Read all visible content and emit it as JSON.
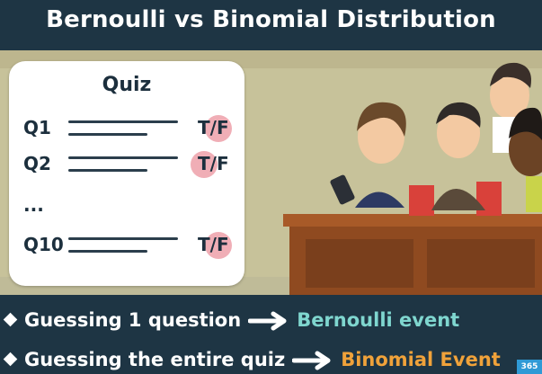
{
  "header": {
    "title": "Bernoulli vs Binomial Distribution"
  },
  "quiz": {
    "title": "Quiz",
    "rows": [
      {
        "label": "Q1",
        "tf": "T/F",
        "highlight": "F"
      },
      {
        "label": "Q2",
        "tf": "T/F",
        "highlight": "T"
      },
      {
        "label": "Q10",
        "tf": "T/F",
        "highlight": "F"
      }
    ],
    "ellipsis": "..."
  },
  "bullets": [
    {
      "text": "Guessing 1 question",
      "result": "Bernoulli event",
      "color": "#7fd6cf"
    },
    {
      "text": "Guessing the entire quiz",
      "result": "Binomial Event",
      "color": "#f0a23a"
    }
  ],
  "badge": "365",
  "icons": {
    "bullet": "diamond-icon",
    "arrow": "right-arrow-icon"
  },
  "colors": {
    "bar": "#1e3544",
    "scene": "#c7c29a",
    "highlight_circle": "#f0aeb6"
  }
}
